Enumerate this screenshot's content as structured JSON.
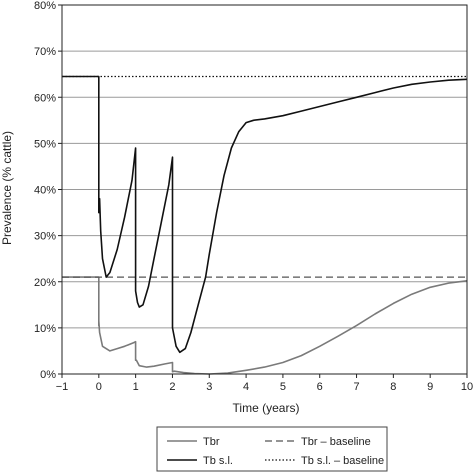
{
  "chart_data": {
    "type": "line",
    "title": "",
    "xlabel": "Time (years)",
    "ylabel": "Prevalence (% cattle)",
    "xlim": [
      -1,
      10
    ],
    "ylim": [
      0,
      80
    ],
    "xticks": [
      "−1",
      "0",
      "1",
      "2",
      "3",
      "4",
      "5",
      "6",
      "7",
      "8",
      "9",
      "10"
    ],
    "yticks": [
      "0%",
      "10%",
      "20%",
      "30%",
      "40%",
      "50%",
      "60%",
      "70%",
      "80%"
    ],
    "grid": "horizontal",
    "legend_position": "bottom",
    "series": [
      {
        "name": "Tbr",
        "style": "solid",
        "color": "#7a7a7a",
        "x": [
          -1,
          0,
          0,
          0,
          0.02,
          0.1,
          0.3,
          0.5,
          0.7,
          0.95,
          1,
          1,
          1.02,
          1.1,
          1.3,
          1.5,
          1.8,
          2,
          2,
          2.05,
          2.3,
          2.6,
          3,
          3.5,
          4,
          4.5,
          5,
          5.5,
          6,
          6.5,
          7,
          7.5,
          8,
          8.5,
          9,
          9.5,
          10
        ],
        "y": [
          21,
          21,
          10.5,
          11.5,
          9,
          6,
          5,
          5.5,
          6,
          6.8,
          7,
          3,
          3,
          1.8,
          1.5,
          1.7,
          2.2,
          2.5,
          0.5,
          0.6,
          0.3,
          0.1,
          0,
          0.2,
          0.8,
          1.5,
          2.5,
          4,
          6,
          8.2,
          10.5,
          13,
          15.3,
          17.3,
          18.8,
          19.7,
          20.2
        ]
      },
      {
        "name": "Tbr – baseline",
        "style": "dashed",
        "color": "#555555",
        "x": [
          -1,
          10
        ],
        "y": [
          21,
          21
        ]
      },
      {
        "name": "Tb s.l.",
        "style": "solid",
        "color": "#111111",
        "x": [
          -1,
          0,
          0,
          0.02,
          0.05,
          0.1,
          0.2,
          0.3,
          0.5,
          0.7,
          0.9,
          1,
          1,
          1,
          1.05,
          1.1,
          1.2,
          1.35,
          1.5,
          1.7,
          1.9,
          2,
          2,
          2,
          2.05,
          2.1,
          2.2,
          2.35,
          2.5,
          2.7,
          2.9,
          3,
          3.2,
          3.4,
          3.6,
          3.8,
          4,
          4.2,
          4.5,
          5,
          5.5,
          6,
          6.5,
          7,
          7.5,
          8,
          8.5,
          9,
          9.5,
          10
        ],
        "y": [
          64.5,
          64.5,
          35,
          38,
          31,
          25,
          21,
          22,
          27,
          34,
          42,
          49,
          25,
          18,
          15.5,
          14.5,
          15,
          19,
          25,
          33,
          41,
          47,
          12,
          10,
          8,
          6,
          4.7,
          5.5,
          9,
          15,
          21,
          26,
          35,
          43,
          49,
          52.5,
          54.5,
          55,
          55.3,
          56,
          57,
          58,
          59,
          60,
          61,
          62,
          62.8,
          63.3,
          63.7,
          63.9
        ]
      },
      {
        "name": "Tb s.l. – baseline",
        "style": "dotted",
        "color": "#111111",
        "x": [
          -1,
          10
        ],
        "y": [
          64.5,
          64.5
        ]
      }
    ]
  }
}
